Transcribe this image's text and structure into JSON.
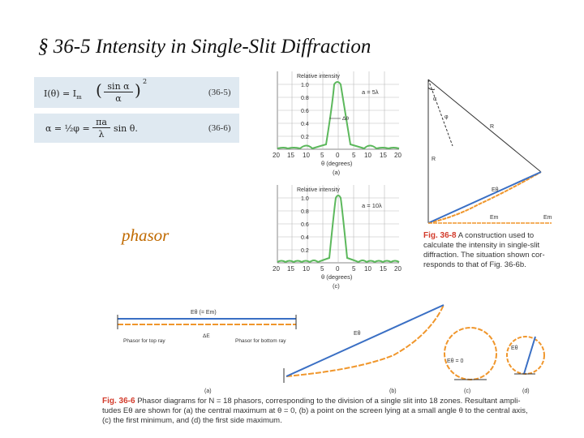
{
  "title": "§ 36-5 Intensity in Single-Slit Diffraction",
  "equations": {
    "eq1_left": "I(θ) = I",
    "eq1_sub": "m",
    "eq1_frac_num": "sin α",
    "eq1_frac_den": "α",
    "eq1_power": "2",
    "eq1_number": "(36-5)",
    "eq2_text": "α = ½φ =",
    "eq2_frac_num": "πa",
    "eq2_frac_den": "λ",
    "eq2_tail": "sin θ.",
    "eq2_number": "(36-6)"
  },
  "phasor_label": "phasor",
  "intensity_plots": {
    "ylabel": "Relative intensity",
    "xlabel": "θ (degrees)",
    "yticks": [
      "1.0",
      "0.8",
      "0.6",
      "0.4",
      "0.2"
    ],
    "xticks": [
      "20",
      "15",
      "10",
      "5",
      "0",
      "5",
      "10",
      "15",
      "20"
    ],
    "plot_a": {
      "legend": "a = 5λ",
      "delta_label": "Δθ",
      "panel": "(a)"
    },
    "plot_c": {
      "legend": "a = 10λ",
      "panel": "(c)"
    }
  },
  "fig_36_8": {
    "labels": {
      "alpha": "α",
      "phi": "φ",
      "R_upper": "R",
      "R_left": "R",
      "E_theta": "Eθ",
      "E_m": "Em",
      "E_m_end": "Em"
    },
    "fig": "Fig. 36-8",
    "caption_lines": [
      "A construction used to",
      "calculate the intensity in single-slit",
      "diffraction. The situation shown cor-",
      "responds to that of Fig. 36-6b."
    ]
  },
  "fig_36_6": {
    "label_a_top": "Eθ (= Em)",
    "label_top_ray": "Phasor for\ntop ray",
    "label_bottom_ray": "Phasor for\nbottom ray",
    "label_delta_e": "ΔE",
    "label_b_e": "Eθ",
    "label_c_e": "Eθ = 0",
    "label_d_e": "Eθ",
    "panels": [
      "(a)",
      "(b)",
      "(c)",
      "(d)"
    ],
    "fig": "Fig. 36-6",
    "caption_lines": [
      "Phasor diagrams for N = 18 phasors, corresponding to the division of a single slit into 18 zones. Resultant ampli-",
      "tudes Eθ are shown for (a) the central maximum at θ = 0, (b) a point on the screen lying at a small angle θ to the central axis,",
      "(c) the first minimum, and (d) the first side maximum."
    ]
  },
  "colors": {
    "curve": "#5cb85c",
    "phasor": "#f0962b",
    "resultant": "#3a6fc4",
    "caption_accent": "#d23a2a"
  }
}
